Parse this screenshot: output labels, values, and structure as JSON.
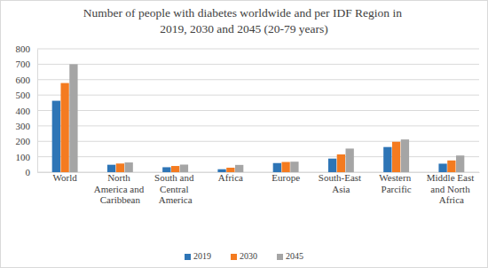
{
  "chart_data": {
    "type": "bar",
    "title": "Number of people with diabetes worldwide and per IDF Region in 2019, 2030 and 2045 (20-79 years)",
    "categories": [
      "World",
      "North America and Caribbean",
      "South and Central America",
      "Africa",
      "Europe",
      "South-East Asia",
      "Western Parcific",
      "Middle East and North Africa"
    ],
    "series": [
      {
        "name": "2019",
        "color": "#2e75b6",
        "values": [
          463,
          48,
          32,
          19,
          59,
          88,
          163,
          55
        ]
      },
      {
        "name": "2030",
        "color": "#f47b20",
        "values": [
          578,
          56,
          40,
          29,
          66,
          115,
          197,
          76
        ]
      },
      {
        "name": "2045",
        "color": "#a5a5a5",
        "values": [
          700,
          63,
          49,
          47,
          68,
          153,
          212,
          108
        ]
      }
    ],
    "ylim": [
      0,
      800
    ],
    "yticks": [
      0,
      100,
      200,
      300,
      400,
      500,
      600,
      700,
      800
    ],
    "grid": true,
    "legend": "bottom"
  }
}
